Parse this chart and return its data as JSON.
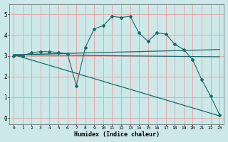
{
  "xlabel": "Humidex (Indice chaleur)",
  "bg_color": "#cce8e8",
  "grid_color": "#e8a0a0",
  "line_color": "#1a6b6b",
  "xlim": [
    -0.5,
    23.5
  ],
  "ylim": [
    -0.3,
    5.5
  ],
  "xticks": [
    0,
    1,
    2,
    3,
    4,
    5,
    6,
    7,
    8,
    9,
    10,
    11,
    12,
    13,
    14,
    15,
    16,
    17,
    18,
    19,
    20,
    21,
    22,
    23
  ],
  "yticks": [
    0,
    1,
    2,
    3,
    4,
    5
  ],
  "lines": [
    {
      "x": [
        0,
        1,
        2,
        3,
        4,
        5,
        6,
        7,
        8,
        9,
        10,
        11,
        12,
        13,
        14,
        15,
        16,
        17,
        18,
        19,
        20,
        21,
        22,
        23
      ],
      "y": [
        3.0,
        3.0,
        3.15,
        3.2,
        3.2,
        3.15,
        3.1,
        1.55,
        3.4,
        4.3,
        4.45,
        4.9,
        4.85,
        4.9,
        4.1,
        3.7,
        4.1,
        4.05,
        3.55,
        3.3,
        2.8,
        1.85,
        1.05,
        0.15
      ],
      "style": "-",
      "marker": "D",
      "markersize": 2.0,
      "linewidth": 0.8,
      "dashed": false
    },
    {
      "x": [
        0,
        23
      ],
      "y": [
        3.05,
        3.3
      ],
      "style": "-",
      "marker": null,
      "markersize": 0,
      "linewidth": 0.9,
      "dashed": false
    },
    {
      "x": [
        0,
        23
      ],
      "y": [
        3.05,
        2.95
      ],
      "style": "-",
      "marker": null,
      "markersize": 0,
      "linewidth": 0.9,
      "dashed": false
    },
    {
      "x": [
        0,
        23
      ],
      "y": [
        3.05,
        0.1
      ],
      "style": "-",
      "marker": null,
      "markersize": 0,
      "linewidth": 0.9,
      "dashed": false
    }
  ]
}
